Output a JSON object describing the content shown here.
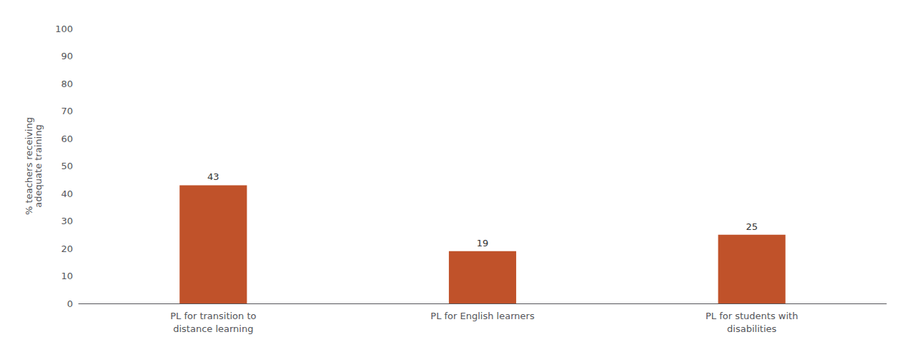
{
  "chart_data": {
    "type": "bar",
    "categories": [
      "PL for transition to\ndistance learning",
      "PL for English learners",
      "PL for students with\ndisabilities"
    ],
    "values": [
      43,
      19,
      25
    ],
    "color": "#c0522a",
    "ylabel": "% teachers receiving\nadequate training",
    "ylim": [
      0,
      100
    ],
    "yticks": [
      0,
      10,
      20,
      30,
      40,
      50,
      60,
      70,
      80,
      90,
      100
    ],
    "grid": false,
    "data_labels": true
  }
}
